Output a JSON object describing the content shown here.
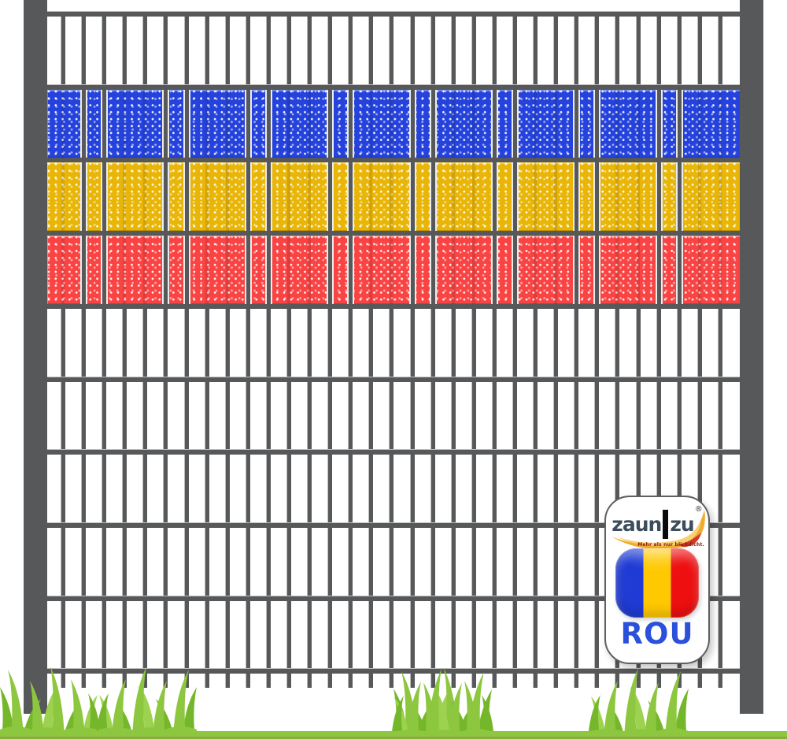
{
  "scene": {
    "description": "Double-rod mesh fence panel between two posts, woven with Romania-flag privacy strips (blue, yellow, red), cartoon grass at the bottom and a zaun|zu country badge card",
    "background": "#ffffff"
  },
  "fence": {
    "metal_color": "#57585a",
    "bar_count": 33,
    "rail_count": 10,
    "post_count": 2
  },
  "flag_band": {
    "name": "romania-flag-privacy-strips",
    "dot_color": "#ffffff",
    "stripes": [
      {
        "name": "blue",
        "color": "#2543dc"
      },
      {
        "name": "yellow",
        "color": "#e9b607"
      },
      {
        "name": "red",
        "color": "#fa4343"
      }
    ]
  },
  "grass": {
    "light": "#8dc63f",
    "mid": "#75b72b",
    "bright": "#9cd24f",
    "base_line": "#87af3e"
  },
  "badge": {
    "brand": {
      "word1": "zaun",
      "word2": "zu",
      "registered": "®",
      "tagline": "Mehr als nur blickdicht.",
      "text_color": "#3e4d5c",
      "pipe_color": "#0b0b0b",
      "tagline_color": "#8b1a12",
      "swoosh_gold": "#f0ab31",
      "swoosh_gold_light": "#f8d070",
      "swoosh_red": "#d2382a"
    },
    "flag_icon": {
      "blue": "#1f3bd3",
      "yellow": "#ffc800",
      "red": "#ee0f10"
    },
    "country_code": "ROU",
    "country_code_color": "#2b50db"
  }
}
